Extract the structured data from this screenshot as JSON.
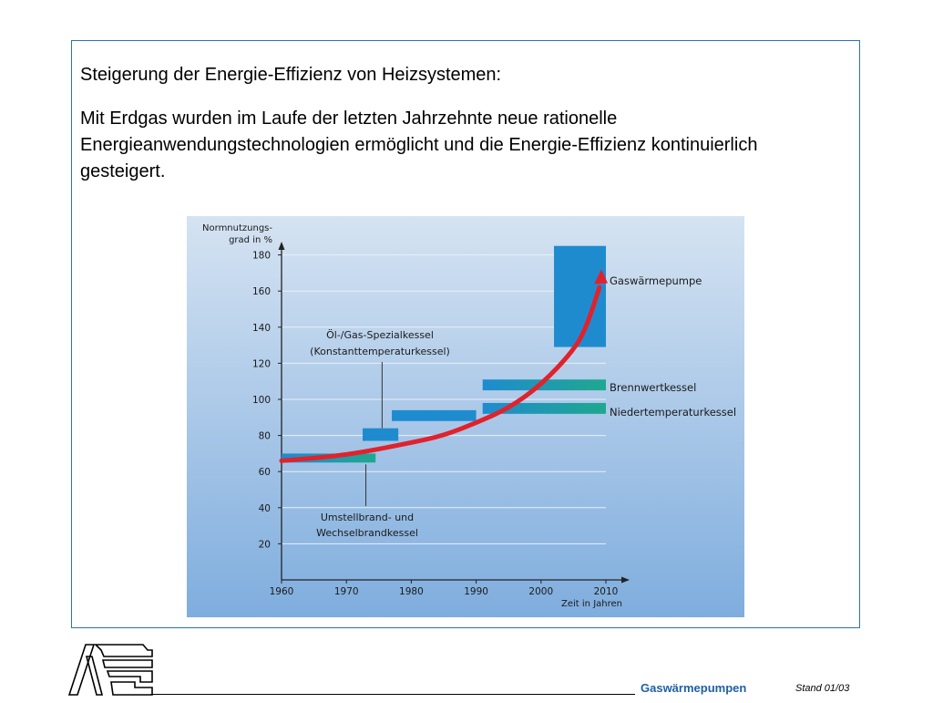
{
  "slide": {
    "heading": "Steigerung der Energie-Effizienz von Heizsystemen:",
    "body": "Mit Erdgas wurden im Laufe der letzten Jahrzehnte neue rationelle Energieanwendungstechnologien ermöglicht und die Energie-Effizienz kontinuierlich gesteigert."
  },
  "footer": {
    "title": "Gaswärmepumpen",
    "date": "Stand  01/03"
  },
  "colors": {
    "frame": "#2a73b8",
    "chart_bg_top": "#d5e3f2",
    "chart_bg_bottom": "#7fadde",
    "bar_blue": "#1f8bcf",
    "bar_teal": "#1fa88e",
    "curve": "#e0222d",
    "footer_title": "#1f5fa6"
  },
  "chart_data": {
    "type": "area",
    "ylabel": "Normnutzungs-grad in %",
    "xlabel": "Zeit in Jahren",
    "xlim": [
      1960,
      2010
    ],
    "ylim": [
      0,
      180
    ],
    "x_ticks": [
      "1960",
      "1970",
      "1980",
      "1990",
      "2000",
      "2010"
    ],
    "y_ticks": [
      "20",
      "40",
      "60",
      "80",
      "100",
      "120",
      "140",
      "160",
      "180"
    ],
    "grid": true,
    "series": [
      {
        "name": "Umstellbrand- und Wechselbrandkessel",
        "x": [
          1960,
          1974.5
        ],
        "y_range": [
          65,
          70
        ]
      },
      {
        "name": "Öl-/Gas-Spezialkessel (Konstanttemperaturkessel)",
        "x": [
          1972.5,
          1978
        ],
        "y_range": [
          77,
          84
        ]
      },
      {
        "name": "Öl-/Gas-Spezialkessel (Konstanttemperaturkessel)",
        "x": [
          1977,
          1990
        ],
        "y_range": [
          88,
          94
        ]
      },
      {
        "name": "Niedertemperaturkessel",
        "x": [
          1991,
          2010
        ],
        "y_range": [
          92,
          98
        ]
      },
      {
        "name": "Brennwertkessel",
        "x": [
          1991,
          2010
        ],
        "y_range": [
          105,
          111
        ]
      },
      {
        "name": "Gaswärmepumpe",
        "x": [
          2002,
          2010
        ],
        "y_range": [
          129,
          190
        ]
      }
    ],
    "trend_curve": {
      "x": [
        1960,
        1970,
        1980,
        1985,
        1990,
        1995,
        2000,
        2005,
        2007,
        2009
      ],
      "y": [
        66,
        69,
        76,
        80,
        87,
        95,
        108,
        127,
        140,
        162
      ]
    },
    "annotations": [
      {
        "lines": [
          "Öl-/Gas-Spezialkessel",
          "(Konstanttemperaturkessel)"
        ],
        "points_to": [
          1975.5,
          84
        ]
      },
      {
        "lines": [
          "Umstellbrand- und",
          "Wechselbrandkessel"
        ],
        "points_to": [
          1973,
          65
        ]
      },
      {
        "lines": [
          "Gaswärmepumpe"
        ]
      },
      {
        "lines": [
          "Brennwertkessel"
        ]
      },
      {
        "lines": [
          "Niedertemperaturkessel"
        ]
      }
    ]
  }
}
